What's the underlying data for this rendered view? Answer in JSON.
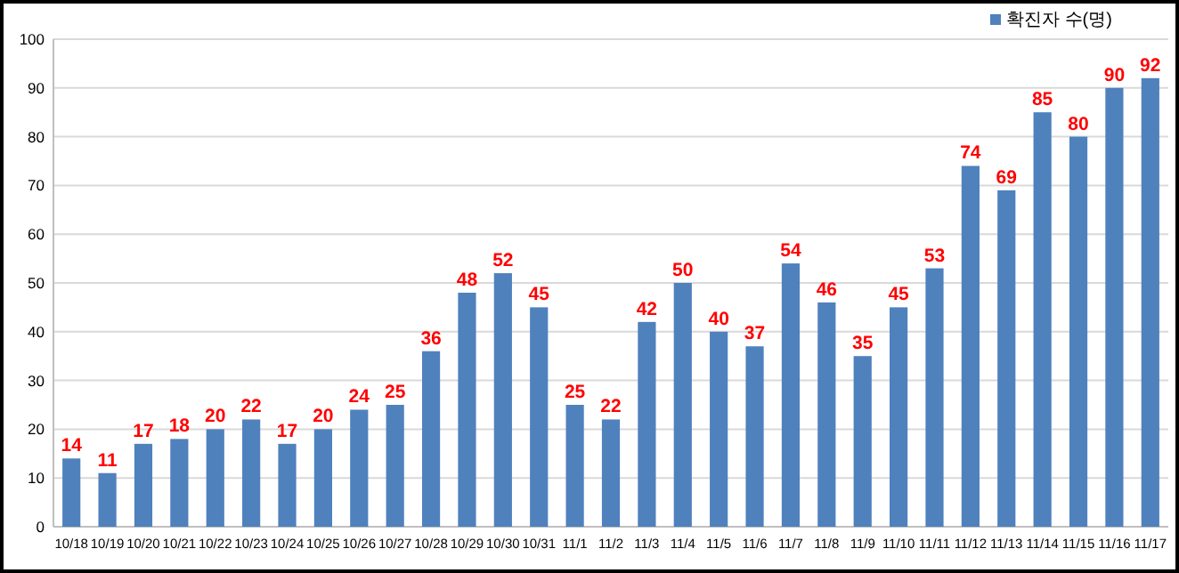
{
  "chart_data": {
    "type": "bar",
    "categories": [
      "10/18",
      "10/19",
      "10/20",
      "10/21",
      "10/22",
      "10/23",
      "10/24",
      "10/25",
      "10/26",
      "10/27",
      "10/28",
      "10/29",
      "10/30",
      "10/31",
      "11/1",
      "11/2",
      "11/3",
      "11/4",
      "11/5",
      "11/6",
      "11/7",
      "11/8",
      "11/9",
      "11/10",
      "11/11",
      "11/12",
      "11/13",
      "11/14",
      "11/15",
      "11/16",
      "11/17"
    ],
    "series": [
      {
        "name": "확진자 수(명)",
        "color": "#4f81bd",
        "values": [
          14,
          11,
          17,
          18,
          20,
          22,
          17,
          20,
          24,
          25,
          36,
          48,
          52,
          45,
          25,
          22,
          42,
          50,
          40,
          37,
          54,
          46,
          35,
          45,
          53,
          74,
          69,
          85,
          80,
          90,
          92
        ]
      }
    ],
    "ylim": [
      0,
      100
    ],
    "yticks": [
      0,
      10,
      20,
      30,
      40,
      50,
      60,
      70,
      80,
      90,
      100
    ],
    "grid": "y",
    "legend": "top right",
    "data_labels": true
  }
}
